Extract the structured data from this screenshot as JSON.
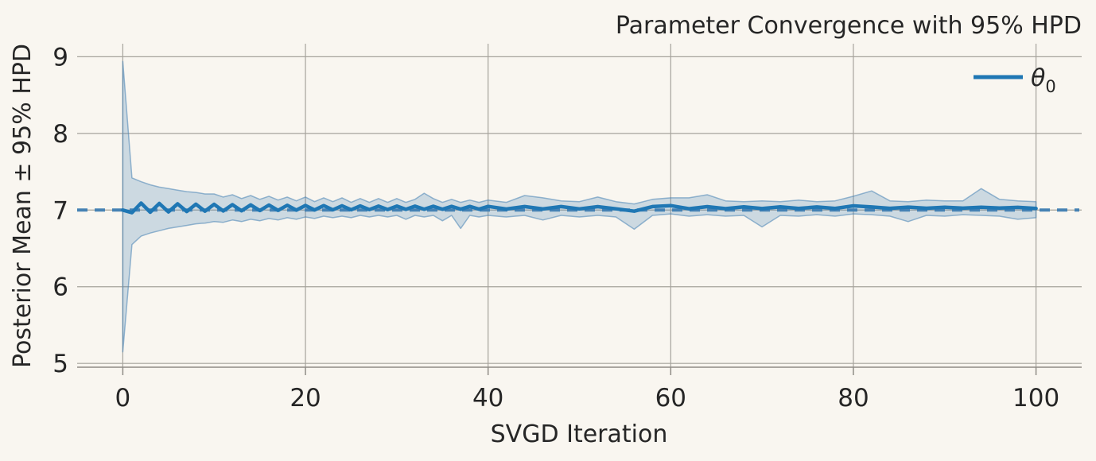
{
  "title": "Parameter Convergence with 95% HPD",
  "axes": {
    "xlabel": "SVGD Iteration",
    "ylabel": "Posterior Mean ± 95% HPD",
    "x_ticks": [
      0,
      20,
      40,
      60,
      80,
      100
    ],
    "y_ticks": [
      5,
      6,
      7,
      8,
      9
    ]
  },
  "legend": {
    "label": "θ0",
    "symbol": "θ",
    "subscript": "0",
    "position": "upper right"
  },
  "colors": {
    "background": "#f9f6f0",
    "line": "#1f77b4",
    "band": "#4682b4",
    "band_fill_opacity": 0.25,
    "band_edge_opacity": 0.55,
    "reference_line": "#4682b4",
    "grid": "#a6a39c",
    "spine": "#8f8c86",
    "text": "#262626"
  },
  "chart_data": {
    "type": "line",
    "title": "Parameter Convergence with 95% HPD",
    "xlabel": "SVGD Iteration",
    "ylabel": "Posterior Mean ± 95% HPD",
    "xlim": [
      -5,
      105
    ],
    "ylim": [
      4.95,
      9.17
    ],
    "grid": true,
    "legend_position": "upper right",
    "reference_line_y": 7.0,
    "x": [
      0,
      1,
      2,
      3,
      4,
      5,
      6,
      7,
      8,
      9,
      10,
      11,
      12,
      13,
      14,
      15,
      16,
      17,
      18,
      19,
      20,
      21,
      22,
      23,
      24,
      25,
      26,
      27,
      28,
      29,
      30,
      31,
      32,
      33,
      34,
      35,
      36,
      37,
      38,
      39,
      40,
      42,
      44,
      46,
      48,
      50,
      52,
      54,
      56,
      58,
      60,
      62,
      64,
      66,
      68,
      70,
      72,
      74,
      76,
      78,
      80,
      82,
      84,
      86,
      88,
      90,
      92,
      94,
      96,
      98,
      100
    ],
    "series": [
      {
        "name": "θ0",
        "mean": [
          7.0,
          6.966,
          7.091,
          6.972,
          7.086,
          6.976,
          7.081,
          6.981,
          7.077,
          6.985,
          7.074,
          6.988,
          7.07,
          6.991,
          7.067,
          6.994,
          7.065,
          6.996,
          7.062,
          6.999,
          7.06,
          7.001,
          7.058,
          7.003,
          7.056,
          7.004,
          7.054,
          7.006,
          7.052,
          7.007,
          7.052,
          7.009,
          7.051,
          7.01,
          7.05,
          7.01,
          7.049,
          7.011,
          7.048,
          7.012,
          7.048,
          7.013,
          7.046,
          7.014,
          7.045,
          7.015,
          7.044,
          7.016,
          6.985,
          7.045,
          7.058,
          7.018,
          7.044,
          7.019,
          7.042,
          7.02,
          7.041,
          7.021,
          7.04,
          7.022,
          7.055,
          7.04,
          7.023,
          7.038,
          7.024,
          7.037,
          7.025,
          7.036,
          7.026,
          7.035,
          7.022
        ],
        "hpd_upper": [
          8.94,
          7.42,
          7.37,
          7.33,
          7.3,
          7.28,
          7.26,
          7.24,
          7.23,
          7.21,
          7.21,
          7.17,
          7.2,
          7.15,
          7.19,
          7.14,
          7.18,
          7.13,
          7.17,
          7.12,
          7.17,
          7.11,
          7.16,
          7.11,
          7.16,
          7.1,
          7.15,
          7.1,
          7.15,
          7.1,
          7.15,
          7.1,
          7.14,
          7.22,
          7.15,
          7.1,
          7.14,
          7.1,
          7.13,
          7.1,
          7.13,
          7.1,
          7.19,
          7.16,
          7.12,
          7.11,
          7.17,
          7.11,
          7.08,
          7.14,
          7.16,
          7.16,
          7.2,
          7.12,
          7.11,
          7.12,
          7.11,
          7.13,
          7.11,
          7.12,
          7.18,
          7.25,
          7.12,
          7.11,
          7.13,
          7.12,
          7.12,
          7.28,
          7.14,
          7.12,
          7.11
        ],
        "hpd_lower": [
          5.15,
          6.55,
          6.66,
          6.7,
          6.73,
          6.76,
          6.78,
          6.8,
          6.82,
          6.83,
          6.85,
          6.84,
          6.87,
          6.85,
          6.88,
          6.86,
          6.89,
          6.87,
          6.9,
          6.88,
          6.91,
          6.89,
          6.92,
          6.9,
          6.92,
          6.9,
          6.93,
          6.91,
          6.93,
          6.91,
          6.93,
          6.88,
          6.93,
          6.91,
          6.93,
          6.86,
          6.93,
          6.76,
          6.93,
          6.91,
          6.93,
          6.91,
          6.93,
          6.87,
          6.93,
          6.91,
          6.93,
          6.91,
          6.75,
          6.93,
          6.95,
          6.92,
          6.94,
          6.92,
          6.93,
          6.78,
          6.93,
          6.92,
          6.94,
          6.92,
          6.95,
          6.94,
          6.92,
          6.85,
          6.93,
          6.92,
          6.94,
          6.93,
          6.92,
          6.88,
          6.9
        ]
      }
    ]
  }
}
